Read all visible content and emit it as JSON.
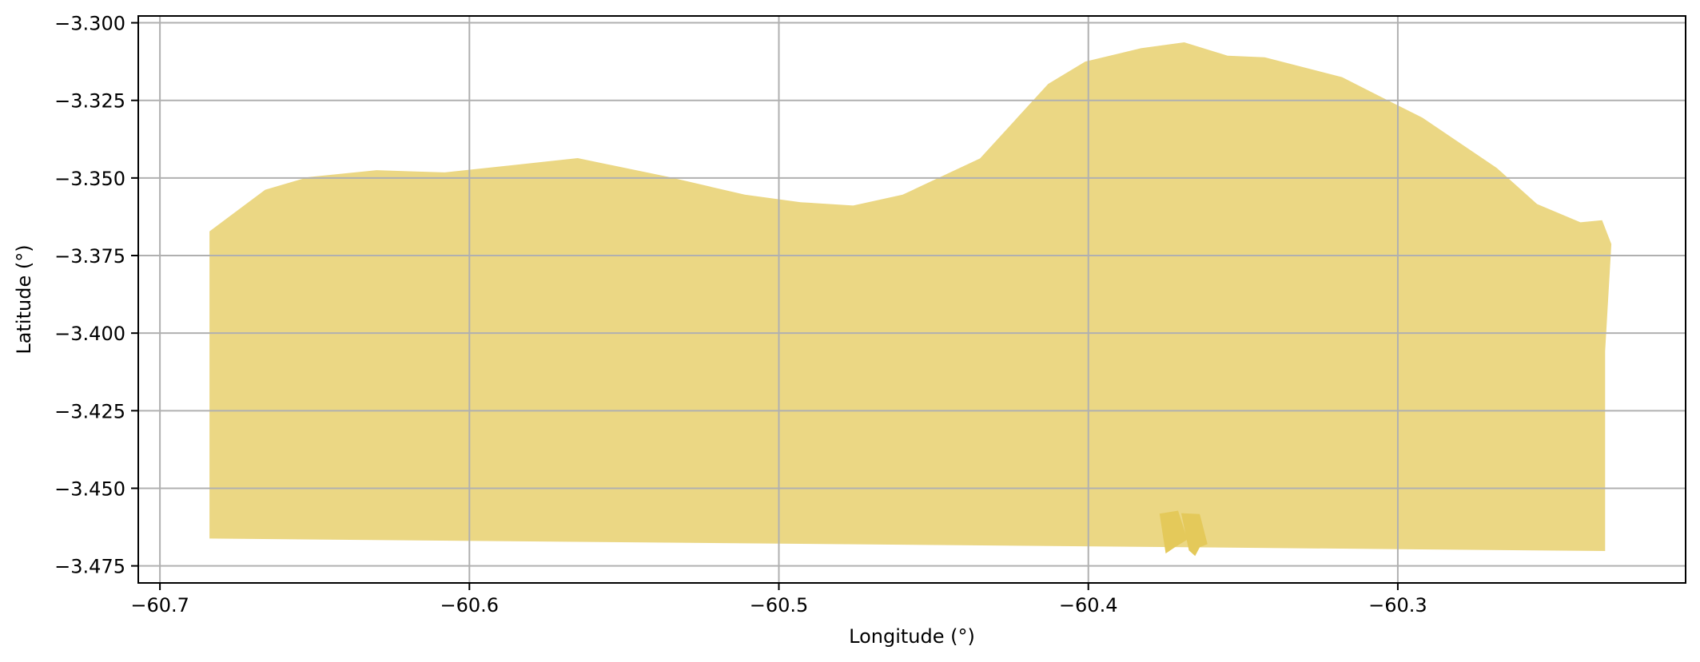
{
  "chart_data": {
    "type": "area",
    "title": "",
    "xlabel": "Longitude (°)",
    "ylabel": "Latitude (°)",
    "xlim": [
      -60.707,
      -60.207
    ],
    "ylim": [
      -3.4805,
      -3.2978
    ],
    "grid": true,
    "x_ticks": [
      {
        "value": -60.7,
        "label": "−60.7"
      },
      {
        "value": -60.6,
        "label": "−60.6"
      },
      {
        "value": -60.5,
        "label": "−60.5"
      },
      {
        "value": -60.4,
        "label": "−60.4"
      },
      {
        "value": -60.3,
        "label": "−60.3"
      }
    ],
    "y_ticks": [
      {
        "value": -3.3,
        "label": "−3.300"
      },
      {
        "value": -3.325,
        "label": "−3.325"
      },
      {
        "value": -3.35,
        "label": "−3.350"
      },
      {
        "value": -3.375,
        "label": "−3.375"
      },
      {
        "value": -3.4,
        "label": "−3.400"
      },
      {
        "value": -3.425,
        "label": "−3.425"
      },
      {
        "value": -3.45,
        "label": "−3.450"
      },
      {
        "value": -3.475,
        "label": "−3.475"
      }
    ],
    "colors": {
      "main_region": "#ebd784",
      "small_region": "#e4c95a",
      "grid": "#b0b0b0",
      "frame": "#000000"
    },
    "regions": [
      {
        "kind": "main",
        "points": [
          [
            -60.684,
            -3.3672
          ],
          [
            -60.666,
            -3.3538
          ],
          [
            -60.652,
            -3.3497
          ],
          [
            -60.63,
            -3.3475
          ],
          [
            -60.608,
            -3.3482
          ],
          [
            -60.565,
            -3.3436
          ],
          [
            -60.536,
            -3.3496
          ],
          [
            -60.511,
            -3.3554
          ],
          [
            -60.493,
            -3.3578
          ],
          [
            -60.476,
            -3.3589
          ],
          [
            -60.46,
            -3.3554
          ],
          [
            -60.435,
            -3.3437
          ],
          [
            -60.413,
            -3.3197
          ],
          [
            -60.401,
            -3.3125
          ],
          [
            -60.383,
            -3.3082
          ],
          [
            -60.369,
            -3.3063
          ],
          [
            -60.355,
            -3.3106
          ],
          [
            -60.343,
            -3.3111
          ],
          [
            -60.318,
            -3.3175
          ],
          [
            -60.306,
            -3.3236
          ],
          [
            -60.292,
            -3.3306
          ],
          [
            -60.268,
            -3.3468
          ],
          [
            -60.255,
            -3.3584
          ],
          [
            -60.241,
            -3.3643
          ],
          [
            -60.234,
            -3.3636
          ],
          [
            -60.231,
            -3.3713
          ],
          [
            -60.233,
            -3.4058
          ],
          [
            -60.233,
            -3.4702
          ],
          [
            -60.684,
            -3.4662
          ],
          [
            -60.684,
            -3.3672
          ]
        ]
      },
      {
        "kind": "small",
        "points": [
          [
            -60.377,
            -3.4582
          ],
          [
            -60.371,
            -3.4572
          ],
          [
            -60.368,
            -3.4665
          ],
          [
            -60.372,
            -3.469
          ],
          [
            -60.375,
            -3.471
          ],
          [
            -60.377,
            -3.4582
          ]
        ]
      },
      {
        "kind": "small",
        "points": [
          [
            -60.37,
            -3.458
          ],
          [
            -60.364,
            -3.4583
          ],
          [
            -60.3615,
            -3.468
          ],
          [
            -60.364,
            -3.469
          ],
          [
            -60.3655,
            -3.4718
          ],
          [
            -60.3675,
            -3.47
          ],
          [
            -60.37,
            -3.458
          ]
        ]
      }
    ]
  }
}
